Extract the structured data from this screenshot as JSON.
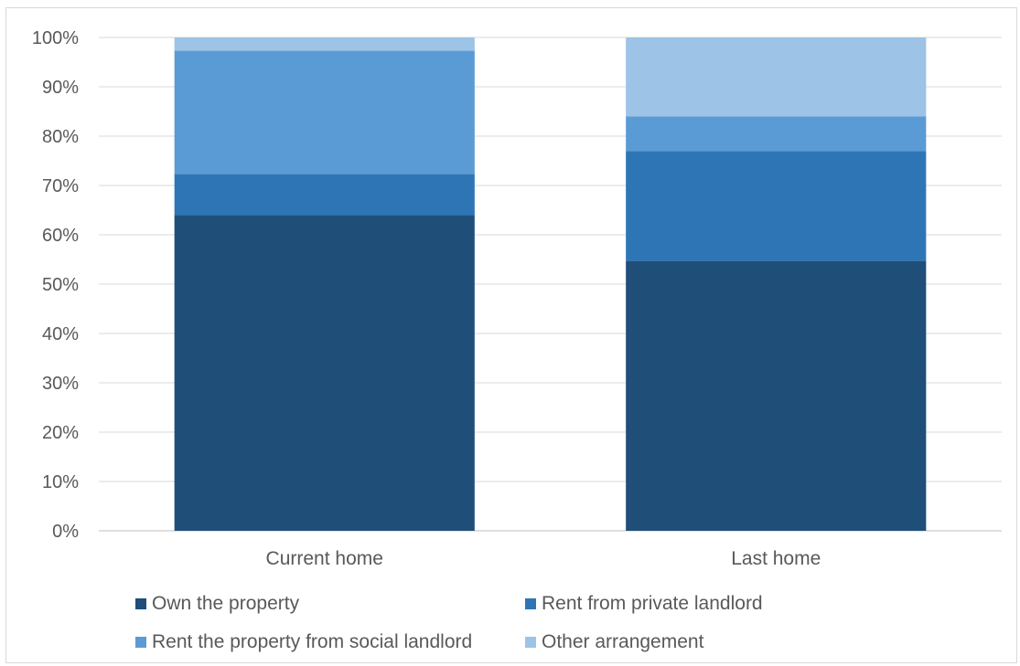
{
  "chart_data": {
    "type": "bar",
    "stacked": true,
    "categories": [
      "Current home",
      "Last home"
    ],
    "series": [
      {
        "name": "Own the property",
        "values": [
          64,
          54.7
        ],
        "color": "#1f4e79"
      },
      {
        "name": "Rent from private landlord",
        "values": [
          8.3,
          22.3
        ],
        "color": "#2e75b6"
      },
      {
        "name": "Rent the property from social landlord",
        "values": [
          25,
          7
        ],
        "color": "#5b9bd5"
      },
      {
        "name": "Other arrangement",
        "values": [
          2.7,
          16
        ],
        "color": "#9dc3e6"
      }
    ],
    "ylim": [
      0,
      100
    ],
    "yticks": [
      "0%",
      "10%",
      "20%",
      "30%",
      "40%",
      "50%",
      "60%",
      "70%",
      "80%",
      "90%",
      "100%"
    ],
    "grid": true,
    "legend_position": "bottom"
  }
}
